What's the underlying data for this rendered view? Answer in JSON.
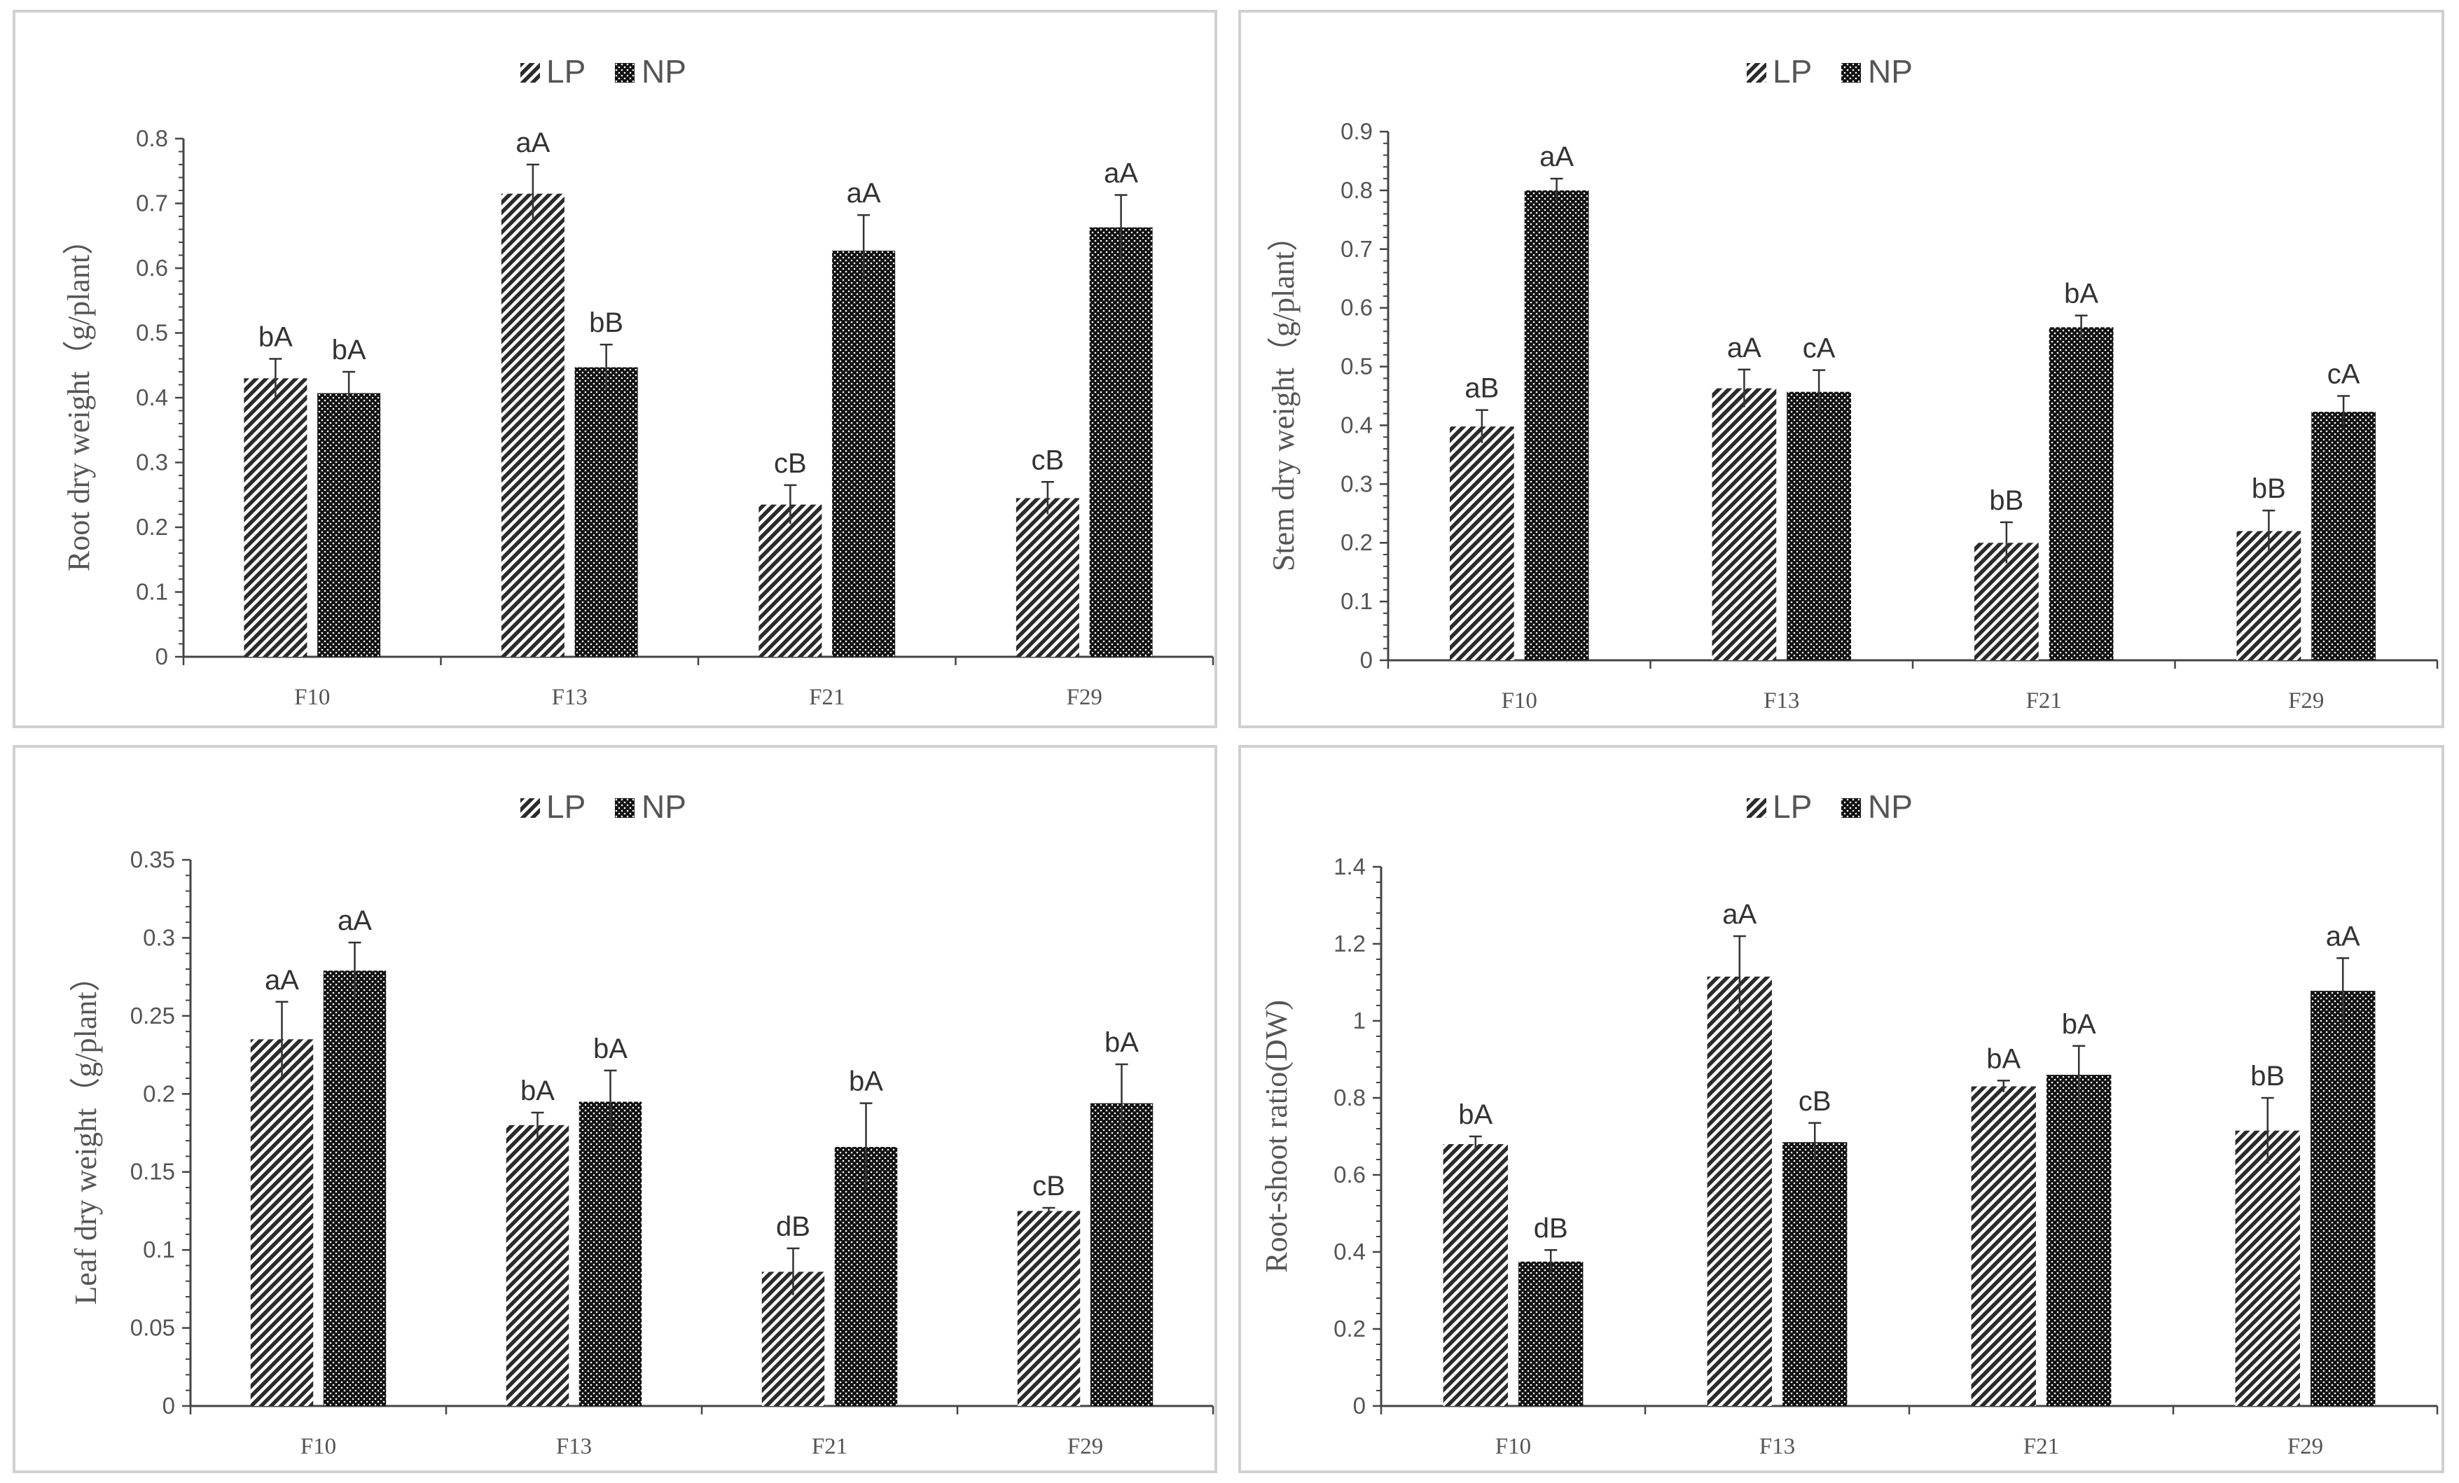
{
  "legend": {
    "lp": "LP",
    "np": "NP"
  },
  "colors": {
    "lp": "#2b2b2b",
    "np": "#111111",
    "axis": "#444444",
    "text": "#555555",
    "border": "#d0d0d0"
  },
  "chart_data": [
    {
      "type": "bar",
      "title": "",
      "xlabel": "",
      "ylabel": "Root dry weight（g/plant）",
      "categories": [
        "F10",
        "F13",
        "F21",
        "F29"
      ],
      "ylim": [
        0,
        0.8
      ],
      "yticks": [
        "0",
        "0.1",
        "0.2",
        "0.3",
        "0.4",
        "0.5",
        "0.6",
        "0.7",
        "0.8"
      ],
      "grid": false,
      "legend_position": "top-center",
      "series": [
        {
          "name": "LP",
          "values": [
            0.43,
            0.715,
            0.235,
            0.245
          ],
          "errors": [
            0.03,
            0.045,
            0.03,
            0.025
          ],
          "labels": [
            "bA",
            "aA",
            "cB",
            "cB"
          ]
        },
        {
          "name": "NP",
          "values": [
            0.407,
            0.447,
            0.627,
            0.663
          ],
          "errors": [
            0.033,
            0.035,
            0.055,
            0.05
          ],
          "labels": [
            "bA",
            "bB",
            "aA",
            "aA"
          ]
        }
      ]
    },
    {
      "type": "bar",
      "title": "",
      "xlabel": "",
      "ylabel": "Stem dry weight（g/plant）",
      "categories": [
        "F10",
        "F13",
        "F21",
        "F29"
      ],
      "ylim": [
        0,
        0.9
      ],
      "yticks": [
        "0",
        "0.1",
        "0.2",
        "0.3",
        "0.4",
        "0.5",
        "0.6",
        "0.7",
        "0.8",
        "0.9"
      ],
      "grid": false,
      "legend_position": "top-center",
      "series": [
        {
          "name": "LP",
          "values": [
            0.398,
            0.463,
            0.2,
            0.22
          ],
          "errors": [
            0.028,
            0.032,
            0.035,
            0.035
          ],
          "labels": [
            "aB",
            "aA",
            "bB",
            "bB"
          ]
        },
        {
          "name": "NP",
          "values": [
            0.8,
            0.457,
            0.567,
            0.423
          ],
          "errors": [
            0.02,
            0.037,
            0.02,
            0.027
          ],
          "labels": [
            "aA",
            "cA",
            "bA",
            "cA"
          ]
        }
      ]
    },
    {
      "type": "bar",
      "title": "",
      "xlabel": "",
      "ylabel": "Leaf dry weight（g/plant）",
      "categories": [
        "F10",
        "F13",
        "F21",
        "F29"
      ],
      "ylim": [
        0,
        0.35
      ],
      "yticks": [
        "0",
        "0.05",
        "0.1",
        "0.15",
        "0.2",
        "0.25",
        "0.3",
        "0.35"
      ],
      "grid": false,
      "legend_position": "top-center",
      "series": [
        {
          "name": "LP",
          "values": [
            0.235,
            0.18,
            0.086,
            0.125
          ],
          "errors": [
            0.024,
            0.008,
            0.015,
            0.002
          ],
          "labels": [
            "aA",
            "bA",
            "dB",
            "cB"
          ]
        },
        {
          "name": "NP",
          "values": [
            0.279,
            0.195,
            0.166,
            0.194
          ],
          "errors": [
            0.018,
            0.02,
            0.028,
            0.025
          ],
          "labels": [
            "aA",
            "bA",
            "bA",
            "bA"
          ]
        }
      ]
    },
    {
      "type": "bar",
      "title": "",
      "xlabel": "",
      "ylabel": "Root-shoot ratio(DW)",
      "categories": [
        "F10",
        "F13",
        "F21",
        "F29"
      ],
      "ylim": [
        0,
        1.4
      ],
      "yticks": [
        "0",
        "0.2",
        "0.4",
        "0.6",
        "0.8",
        "1",
        "1.2",
        "1.4"
      ],
      "grid": false,
      "legend_position": "top-center",
      "series": [
        {
          "name": "LP",
          "values": [
            0.68,
            1.115,
            0.83,
            0.715
          ],
          "errors": [
            0.02,
            0.105,
            0.015,
            0.085
          ],
          "labels": [
            "bA",
            "aA",
            "bA",
            "bB"
          ]
        },
        {
          "name": "NP",
          "values": [
            0.375,
            0.685,
            0.86,
            1.078
          ],
          "errors": [
            0.03,
            0.05,
            0.075,
            0.085
          ],
          "labels": [
            "dB",
            "cB",
            "bA",
            "aA"
          ]
        }
      ]
    }
  ]
}
